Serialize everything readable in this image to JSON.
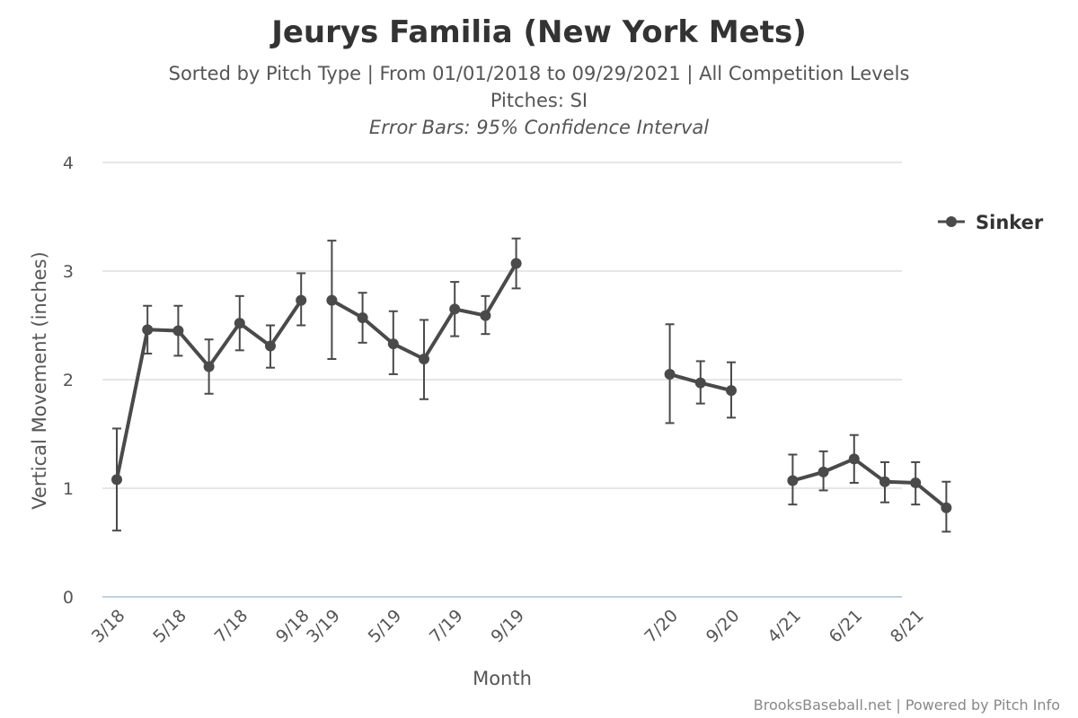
{
  "chart_data": {
    "type": "line",
    "title": "Jeurys Familia (New York Mets)",
    "subtitle_line1": "Sorted by Pitch Type | From 01/01/2018 to 09/29/2021 | All Competition Levels",
    "subtitle_line2": "Pitches: SI",
    "subtitle_line3": "Error Bars: 95% Confidence Interval",
    "xlabel": "Month",
    "ylabel": "Vertical Movement (inches)",
    "ylim": [
      0,
      4
    ],
    "yticks": [
      "0",
      "1",
      "2",
      "3",
      "4"
    ],
    "xtick_labels": [
      "3/18",
      "5/18",
      "7/18",
      "9/18",
      "3/19",
      "5/19",
      "7/19",
      "9/19",
      "7/20",
      "9/20",
      "4/21",
      "6/21",
      "8/21"
    ],
    "credits": "BrooksBaseball.net | Powered by Pitch Info",
    "color": "#4a4a4a",
    "series": [
      {
        "name": "Sinker",
        "segments": [
          {
            "points": [
              {
                "month": "3/18",
                "value": 1.08,
                "low": 0.61,
                "high": 1.55
              },
              {
                "month": "4/18",
                "value": 2.46,
                "low": 2.24,
                "high": 2.68
              },
              {
                "month": "5/18",
                "value": 2.45,
                "low": 2.22,
                "high": 2.68
              },
              {
                "month": "6/18",
                "value": 2.12,
                "low": 1.87,
                "high": 2.37
              },
              {
                "month": "7/18",
                "value": 2.52,
                "low": 2.27,
                "high": 2.77
              },
              {
                "month": "8/18",
                "value": 2.31,
                "low": 2.11,
                "high": 2.5
              },
              {
                "month": "9/18",
                "value": 2.73,
                "low": 2.5,
                "high": 2.98
              }
            ]
          },
          {
            "points": [
              {
                "month": "3/19",
                "value": 2.73,
                "low": 2.19,
                "high": 3.28
              },
              {
                "month": "4/19",
                "value": 2.57,
                "low": 2.34,
                "high": 2.8
              },
              {
                "month": "5/19",
                "value": 2.33,
                "low": 2.05,
                "high": 2.63
              },
              {
                "month": "6/19",
                "value": 2.19,
                "low": 1.82,
                "high": 2.55
              },
              {
                "month": "7/19",
                "value": 2.65,
                "low": 2.4,
                "high": 2.9
              },
              {
                "month": "8/19",
                "value": 2.59,
                "low": 2.42,
                "high": 2.77
              },
              {
                "month": "9/19",
                "value": 3.07,
                "low": 2.84,
                "high": 3.3
              }
            ]
          },
          {
            "points": [
              {
                "month": "7/20",
                "value": 2.05,
                "low": 1.6,
                "high": 2.51
              },
              {
                "month": "8/20",
                "value": 1.97,
                "low": 1.78,
                "high": 2.17
              },
              {
                "month": "9/20",
                "value": 1.9,
                "low": 1.65,
                "high": 2.16
              }
            ]
          },
          {
            "points": [
              {
                "month": "4/21",
                "value": 1.07,
                "low": 0.85,
                "high": 1.31
              },
              {
                "month": "5/21",
                "value": 1.15,
                "low": 0.98,
                "high": 1.34
              },
              {
                "month": "6/21",
                "value": 1.27,
                "low": 1.05,
                "high": 1.49
              },
              {
                "month": "7/21",
                "value": 1.06,
                "low": 0.87,
                "high": 1.24
              },
              {
                "month": "8/21",
                "value": 1.05,
                "low": 0.85,
                "high": 1.24
              },
              {
                "month": "9/21",
                "value": 0.82,
                "low": 0.6,
                "high": 1.06
              }
            ]
          }
        ]
      }
    ]
  }
}
